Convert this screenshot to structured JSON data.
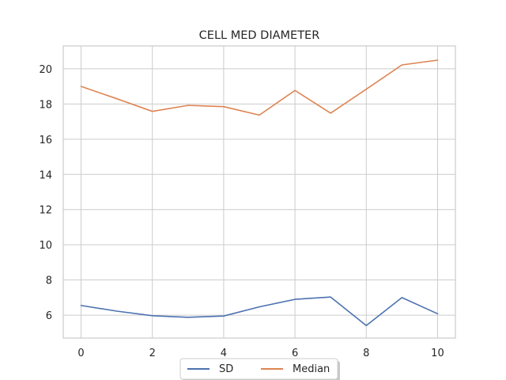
{
  "chart_data": {
    "type": "line",
    "title": "CELL MED DIAMETER",
    "xlabel": "",
    "ylabel": "",
    "x": [
      0,
      1,
      2,
      3,
      4,
      5,
      6,
      7,
      8,
      9,
      10
    ],
    "x_ticks": [
      0,
      2,
      4,
      6,
      8,
      10
    ],
    "y_ticks": [
      6,
      8,
      10,
      12,
      14,
      16,
      18,
      20
    ],
    "xlim": [
      -0.5,
      10.5
    ],
    "ylim": [
      4.7,
      21.3
    ],
    "grid": true,
    "legend_position": "bottom-center",
    "series": [
      {
        "name": "SD",
        "color": "#4c72b0",
        "values": [
          6.55,
          6.23,
          5.97,
          5.88,
          5.95,
          6.47,
          6.9,
          7.03,
          5.41,
          7.0,
          6.08
        ]
      },
      {
        "name": "Median",
        "color": "#dd8452",
        "values": [
          19.0,
          18.3,
          17.58,
          17.92,
          17.85,
          17.37,
          18.77,
          17.48,
          18.84,
          20.22,
          20.49
        ]
      }
    ]
  }
}
